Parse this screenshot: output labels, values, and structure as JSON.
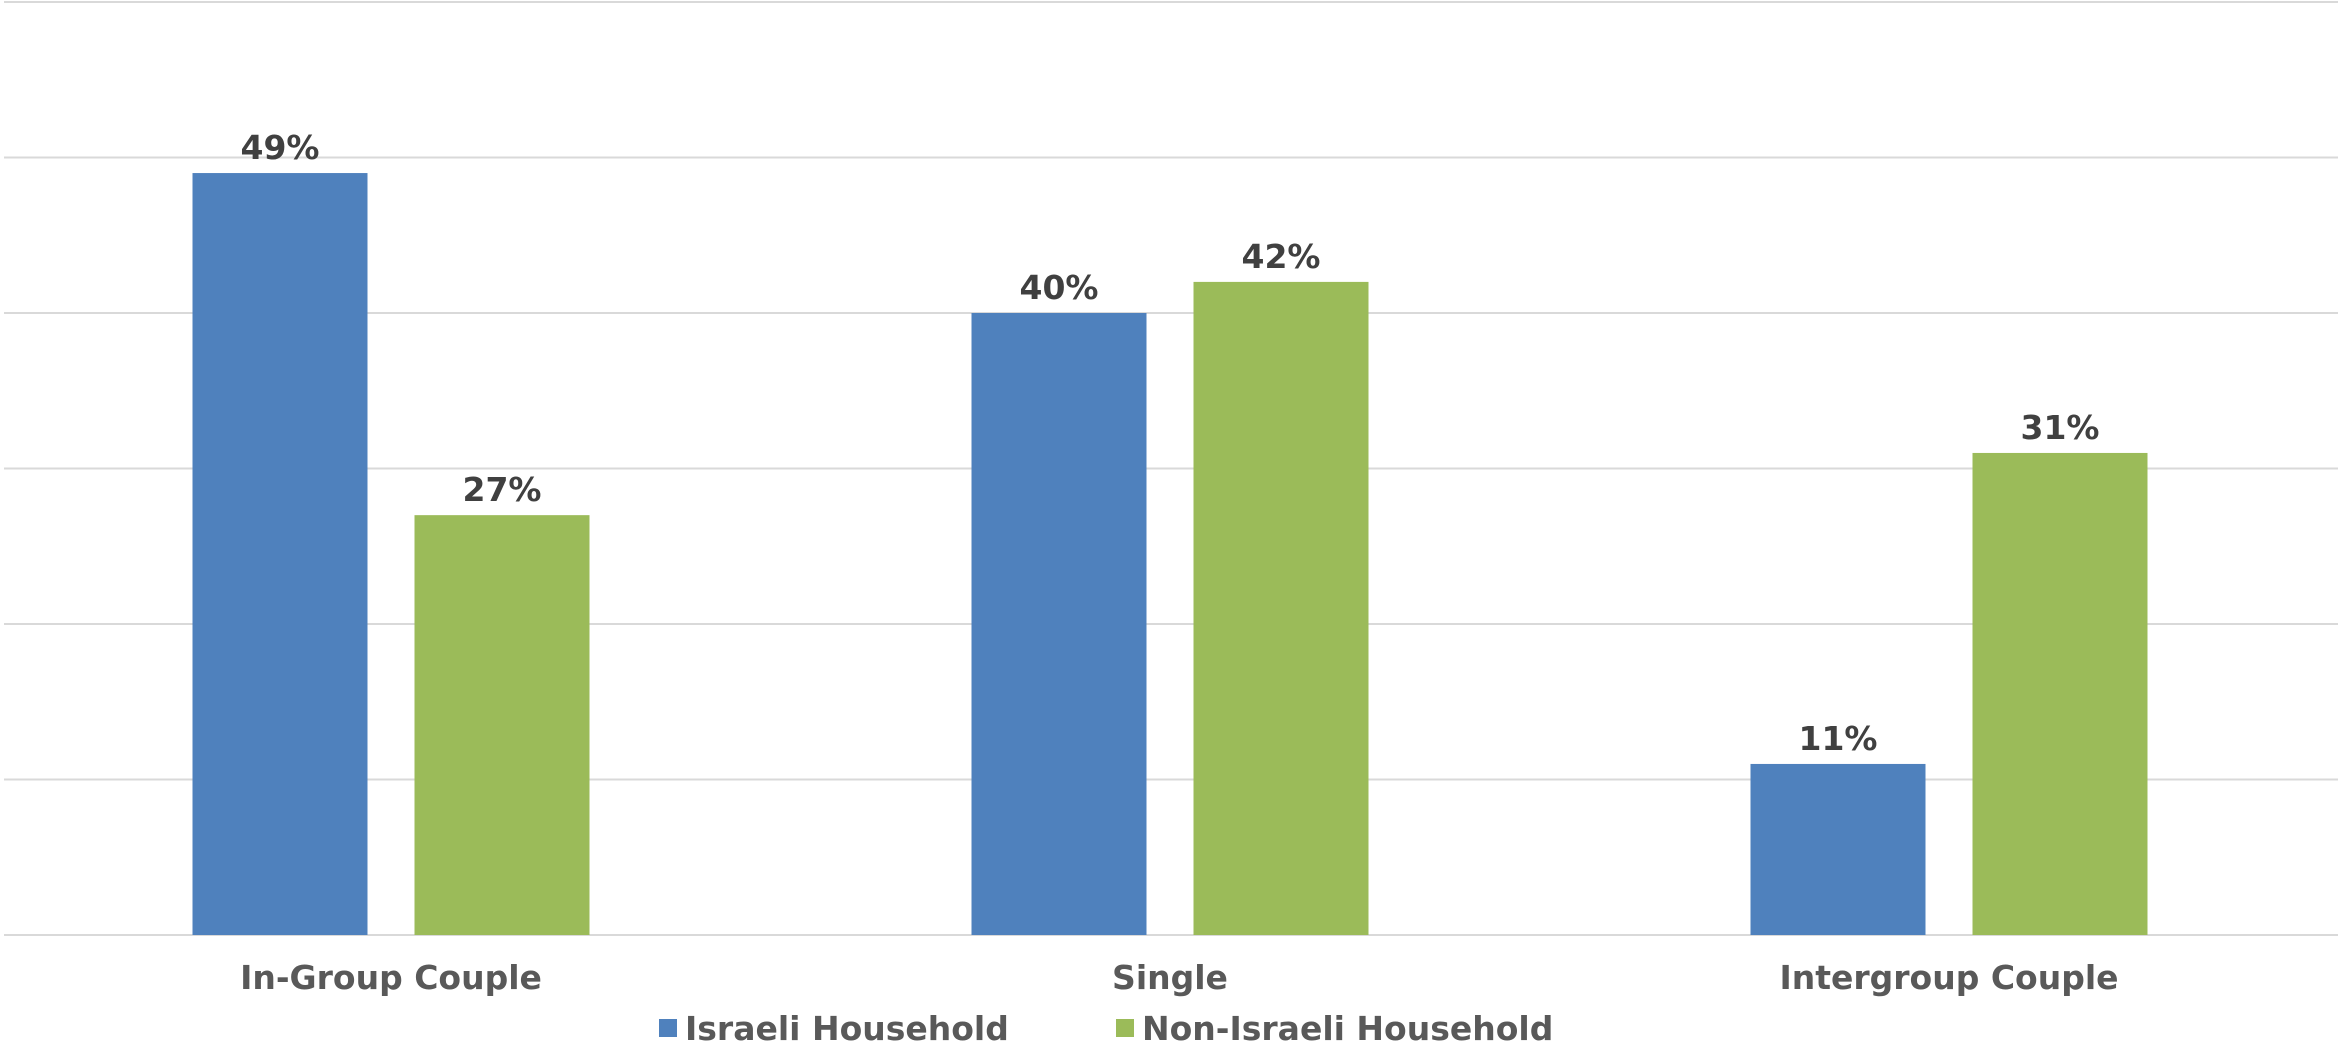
{
  "chart_data": {
    "type": "bar",
    "categories": [
      "In-Group Couple",
      "Single",
      "Intergroup Couple"
    ],
    "series": [
      {
        "name": "Israeli Household",
        "values": [
          49,
          40,
          11
        ],
        "labels": [
          "49%",
          "40%",
          "11%"
        ],
        "color": "#4f81bd"
      },
      {
        "name": "Non-Israeli Household",
        "values": [
          27,
          42,
          31
        ],
        "labels": [
          "27%",
          "42%",
          "31%"
        ],
        "color": "#9bbb59"
      }
    ],
    "ylim": [
      0,
      60
    ],
    "grid": true,
    "gridline_color": "#d9d9d9",
    "label_color": "#404040",
    "category_color": "#595959",
    "legend_position": "bottom",
    "title": "",
    "xlabel": "",
    "ylabel": ""
  }
}
